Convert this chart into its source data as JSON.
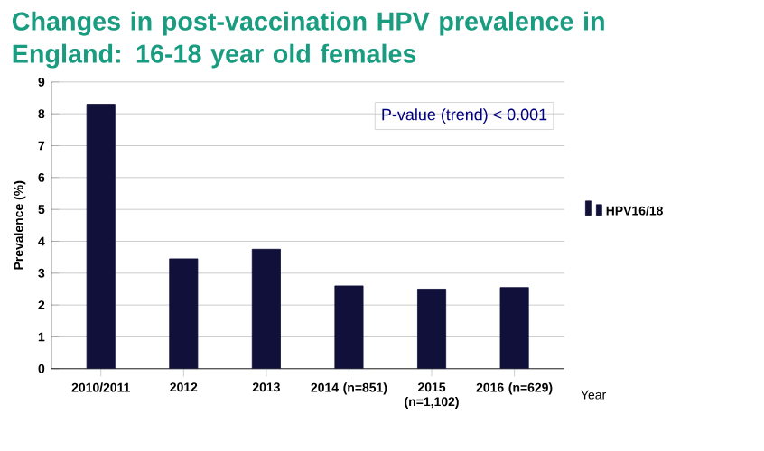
{
  "chart_data": {
    "type": "bar",
    "title": "Changes in post-vaccination HPV prevalence in England: 16-18 year old females",
    "categories": [
      "2010/2011",
      "2012",
      "2013",
      "2014 (n=851)",
      "2015 (n=1,102)",
      "2016 (n=629)"
    ],
    "series": [
      {
        "name": "HPV16/18",
        "color": "#10103a",
        "values": [
          8.3,
          3.45,
          3.75,
          2.6,
          2.5,
          2.55
        ]
      }
    ],
    "xlabel": "Year",
    "ylabel": "Prevalence (%)",
    "ylim": [
      0,
      9
    ],
    "yticks": [
      0,
      1,
      2,
      3,
      4,
      5,
      6,
      7,
      8,
      9
    ],
    "grid": "y",
    "legend": "right",
    "annotations": [
      "P-value (trend) < 0.001"
    ]
  }
}
